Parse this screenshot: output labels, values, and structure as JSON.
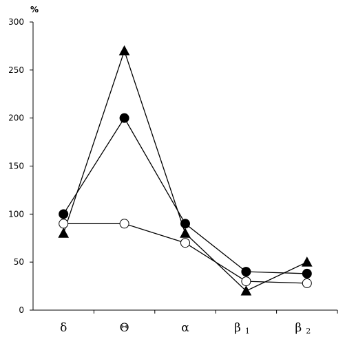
{
  "chart_data": {
    "type": "line",
    "title": "",
    "xlabel": "",
    "ylabel": "%",
    "ylim": [
      0,
      300
    ],
    "yticks": [
      0,
      50,
      100,
      150,
      200,
      250,
      300
    ],
    "grid": false,
    "legend": "none",
    "categories": [
      {
        "base": "δ",
        "sub": ""
      },
      {
        "base": "Θ",
        "sub": ""
      },
      {
        "base": "α",
        "sub": ""
      },
      {
        "base": "β",
        "sub": "1"
      },
      {
        "base": "β",
        "sub": "2"
      }
    ],
    "series": [
      {
        "marker": "triangle-filled",
        "color": "#000000",
        "values": [
          80,
          270,
          80,
          20,
          50
        ]
      },
      {
        "marker": "circle-filled",
        "color": "#000000",
        "values": [
          100,
          200,
          90,
          40,
          38
        ]
      },
      {
        "marker": "circle-open",
        "color": "#000000",
        "values": [
          90,
          90,
          70,
          30,
          28
        ]
      }
    ]
  }
}
